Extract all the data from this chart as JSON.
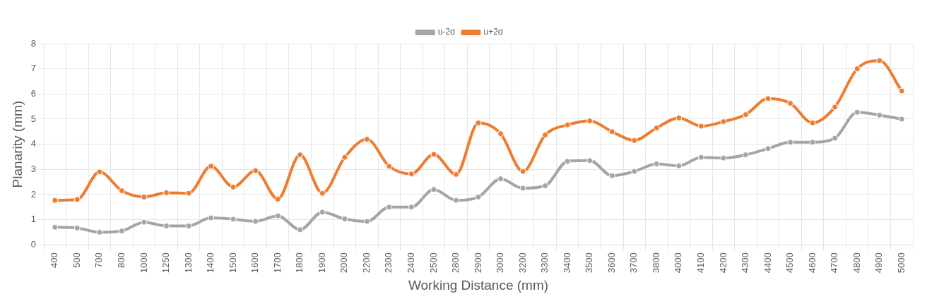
{
  "chart_data": {
    "type": "line",
    "xlabel": "Working Distance (mm)",
    "ylabel": "Planarity (mm)",
    "categories": [
      "400",
      "500",
      "700",
      "800",
      "1000",
      "1250",
      "1300",
      "1400",
      "1500",
      "1600",
      "1700",
      "1800",
      "1900",
      "2000",
      "2200",
      "2300",
      "2400",
      "2500",
      "2800",
      "2900",
      "3000",
      "3200",
      "3300",
      "3400",
      "3500",
      "3600",
      "3700",
      "3800",
      "4000",
      "4100",
      "4200",
      "4300",
      "4400",
      "4500",
      "4600",
      "4700",
      "4800",
      "4900",
      "5000"
    ],
    "series": [
      {
        "name": "u-2σ",
        "color": "#a5a5a5",
        "values": [
          0.7,
          0.67,
          0.5,
          0.55,
          0.9,
          0.75,
          0.75,
          1.07,
          1.02,
          0.93,
          1.15,
          0.6,
          1.3,
          1.03,
          0.93,
          1.5,
          1.5,
          2.2,
          1.77,
          1.9,
          2.62,
          2.25,
          2.35,
          3.32,
          3.35,
          2.75,
          2.92,
          3.22,
          3.14,
          3.48,
          3.45,
          3.58,
          3.83,
          4.08,
          4.08,
          4.24,
          5.27,
          5.16,
          5.0
        ]
      },
      {
        "name": "u+2σ",
        "color": "#ed7d31",
        "values": [
          1.77,
          1.8,
          2.9,
          2.15,
          1.9,
          2.07,
          2.05,
          3.13,
          2.3,
          2.95,
          1.82,
          3.58,
          2.05,
          3.48,
          4.2,
          3.12,
          2.82,
          3.6,
          2.8,
          4.85,
          4.42,
          2.92,
          4.37,
          4.77,
          4.93,
          4.5,
          4.15,
          4.65,
          5.05,
          4.72,
          4.9,
          5.18,
          5.82,
          5.63,
          4.85,
          5.48,
          7.0,
          7.33,
          6.12
        ]
      }
    ],
    "ylim": [
      0,
      8
    ],
    "yticks": [
      0,
      1,
      2,
      3,
      4,
      5,
      6,
      7,
      8
    ],
    "grid": true,
    "legend": "top",
    "marker": "circle",
    "line_style": "solid"
  }
}
